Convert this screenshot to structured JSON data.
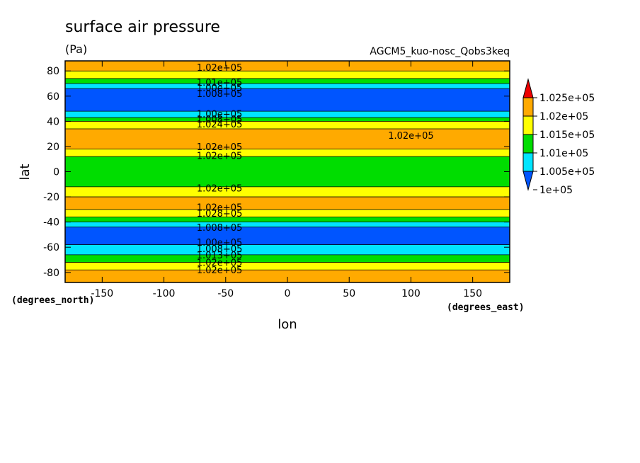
{
  "chart_data": {
    "type": "contour",
    "title": "surface air pressure",
    "units": "(Pa)",
    "source": "AGCM5_kuo-nosc_Qobs3keq",
    "xlabel": "lon",
    "ylabel": "lat",
    "x_unit_label": "(degrees_east)",
    "y_unit_label": "(degrees_north)",
    "xlim": [
      -180,
      180
    ],
    "ylim": [
      -88,
      88
    ],
    "xticks": [
      -150,
      -100,
      -50,
      0,
      50,
      100,
      150
    ],
    "yticks": [
      -80,
      -60,
      -40,
      -20,
      0,
      20,
      40,
      60,
      80
    ],
    "levels": [
      100000,
      100500,
      101000,
      101500,
      102000,
      102500
    ],
    "colorbar": {
      "labels": [
        "1.025e+05",
        "1.02e+05",
        "1.015e+05",
        "1.01e+05",
        "1.005e+05",
        "1e+05"
      ],
      "colors": [
        "#0055ff",
        "#00e5ff",
        "#00dd00",
        "#ffff00",
        "#ffaa00",
        "#ee0000"
      ]
    },
    "bands": [
      {
        "lat": [
          80,
          88
        ],
        "value": 102200
      },
      {
        "lat": [
          74,
          80
        ],
        "value": 101700
      },
      {
        "lat": [
          70,
          74
        ],
        "value": 101200
      },
      {
        "lat": [
          66,
          70
        ],
        "value": 100700
      },
      {
        "lat": [
          48,
          66
        ],
        "value": 100300
      },
      {
        "lat": [
          43,
          48
        ],
        "value": 100700
      },
      {
        "lat": [
          40,
          43
        ],
        "value": 101200
      },
      {
        "lat": [
          34,
          40
        ],
        "value": 101700
      },
      {
        "lat": [
          18,
          34
        ],
        "value": 102200
      },
      {
        "lat": [
          12,
          18
        ],
        "value": 101700
      },
      {
        "lat": [
          -12,
          12
        ],
        "value": 101200
      },
      {
        "lat": [
          -20,
          -12
        ],
        "value": 101700
      },
      {
        "lat": [
          -30,
          -20
        ],
        "value": 102200
      },
      {
        "lat": [
          -36,
          -30
        ],
        "value": 101700
      },
      {
        "lat": [
          -40,
          -36
        ],
        "value": 101200
      },
      {
        "lat": [
          -44,
          -40
        ],
        "value": 100700
      },
      {
        "lat": [
          -58,
          -44
        ],
        "value": 100300
      },
      {
        "lat": [
          -66,
          -58
        ],
        "value": 100700
      },
      {
        "lat": [
          -72,
          -66
        ],
        "value": 101200
      },
      {
        "lat": [
          -78,
          -72
        ],
        "value": 101700
      },
      {
        "lat": [
          -88,
          -78
        ],
        "value": 102200
      }
    ],
    "contour_labels": [
      {
        "text": "1.02e+05",
        "lon": -55,
        "lat": 83
      },
      {
        "text": "1.01e+05",
        "lon": -55,
        "lat": 71
      },
      {
        "text": "1.00e+05",
        "lon": -55,
        "lat": 67
      },
      {
        "text": "1.008+05",
        "lon": -55,
        "lat": 62
      },
      {
        "text": "1.00e+05",
        "lon": -55,
        "lat": 46
      },
      {
        "text": "1.008+05",
        "lon": -55,
        "lat": 42
      },
      {
        "text": "1.024+05",
        "lon": -55,
        "lat": 38
      },
      {
        "text": "1.02e+05",
        "lon": -55,
        "lat": 20
      },
      {
        "text": "1.02e+05",
        "lon": -55,
        "lat": 13
      },
      {
        "text": "1.02e+05",
        "lon": 100,
        "lat": 29
      },
      {
        "text": "1.02e+05",
        "lon": -55,
        "lat": -13
      },
      {
        "text": "1.02e+05",
        "lon": -55,
        "lat": -28
      },
      {
        "text": "1.028+05",
        "lon": -55,
        "lat": -33
      },
      {
        "text": "1.008+05",
        "lon": -55,
        "lat": -44
      },
      {
        "text": "1.00e+05",
        "lon": -55,
        "lat": -56
      },
      {
        "text": "1.008+05",
        "lon": -55,
        "lat": -61
      },
      {
        "text": "1.013+05",
        "lon": -55,
        "lat": -66
      },
      {
        "text": "1.02e+05",
        "lon": -55,
        "lat": -72
      },
      {
        "text": "1.02e+05",
        "lon": -55,
        "lat": -78
      }
    ]
  }
}
